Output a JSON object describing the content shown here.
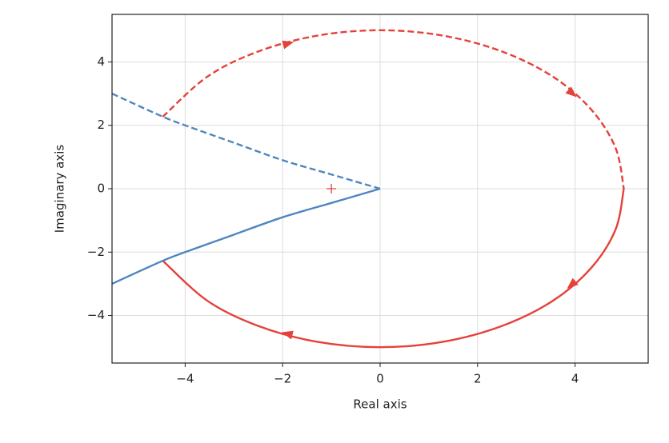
{
  "chart_data": {
    "type": "line",
    "xlabel": "Real axis",
    "ylabel": "Imaginary axis",
    "xlim": [
      -5.5,
      5.5
    ],
    "ylim": [
      -5.5,
      5.5
    ],
    "xticks": [
      {
        "value": -4,
        "label": "−4"
      },
      {
        "value": -2,
        "label": "−2"
      },
      0,
      2,
      4
    ],
    "yticks": [
      {
        "value": -4,
        "label": "−4"
      },
      {
        "value": -2,
        "label": "−2"
      },
      0,
      2,
      4
    ],
    "grid": true,
    "series": [
      {
        "color": "#e5413a",
        "dash": "dashed",
        "arrows": true,
        "x": [
          -4.46,
          -3.54,
          -2.5,
          -1.29,
          0,
          1.29,
          2.5,
          3.54,
          4.33,
          4.83,
          5
        ],
        "values": [
          2.27,
          3.54,
          4.33,
          4.83,
          5,
          4.83,
          4.33,
          3.54,
          2.5,
          1.29,
          0
        ]
      },
      {
        "color": "#e5413a",
        "dash": "solid",
        "arrows": true,
        "x": [
          5,
          4.83,
          4.33,
          3.54,
          2.5,
          1.29,
          0,
          -1.29,
          -2.5,
          -3.54,
          -4.46
        ],
        "values": [
          0,
          -1.29,
          -2.5,
          -3.54,
          -4.33,
          -4.83,
          -5,
          -4.83,
          -4.33,
          -3.54,
          -2.27
        ]
      },
      {
        "color": "#4f86c0",
        "dash": "dashed",
        "x": [
          -5.5,
          -4.5,
          -4,
          -3,
          -2,
          -1,
          0
        ],
        "values": [
          3.0,
          2.3,
          2.0,
          1.45,
          0.9,
          0.45,
          0
        ]
      },
      {
        "color": "#4f86c0",
        "dash": "solid",
        "x": [
          0,
          -1,
          -2,
          -3,
          -4,
          -4.5,
          -5.5
        ],
        "values": [
          0,
          -0.45,
          -0.9,
          -1.45,
          -2.0,
          -2.3,
          -3.0
        ]
      },
      {
        "color": "#e5413a",
        "marker": "+",
        "x": [
          -1
        ],
        "values": [
          0
        ]
      }
    ]
  }
}
